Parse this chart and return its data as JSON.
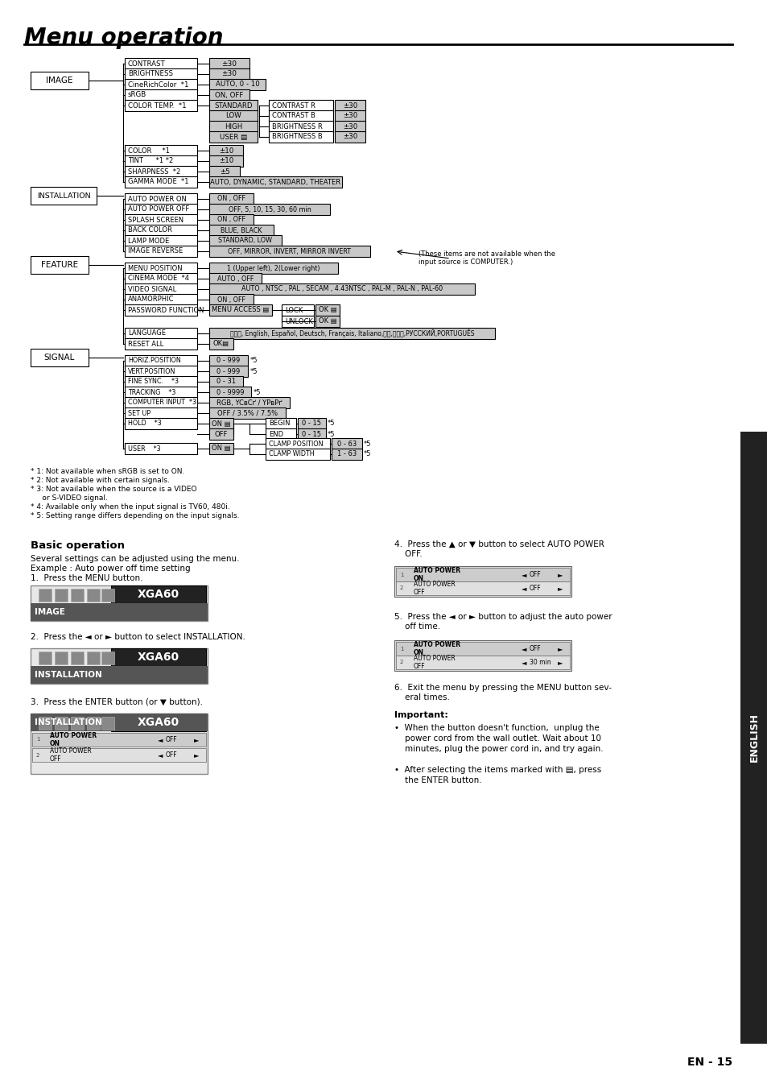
{
  "title": "Menu operation",
  "page_num": "EN - 15",
  "sidebar_text": "ENGLISH",
  "bg_color": "#ffffff",
  "box_light_gray": "#d0d0d0",
  "box_dark": "#404040",
  "footnotes": [
    "* 1: Not available when sRGB is set to ON.",
    "* 2: Not available with certain signals.",
    "* 3: Not available when the source is a VIDEO",
    "     or S-VIDEO signal.",
    "* 4: Available only when the input signal is TV60, 480i.",
    "* 5: Setting range differs depending on the input signals."
  ],
  "basic_op_title": "Basic operation",
  "basic_op_lines": [
    "Several settings can be adjusted using the menu.",
    "Example : Auto power off time setting",
    "1.  Press the MENU button."
  ],
  "step2": "2.  Press the ◄ or ► button to select INSTALLATION.",
  "step3": "3.  Press the ENTER button (or ▼ button).",
  "step4": "4.  Press the ▲ or ▼ button to select AUTO POWER\n    OFF.",
  "step5": "5.  Press the ◄ or ► button to adjust the auto power\n    off time.",
  "step6": "6.  Exit the menu by pressing the MENU button sev-\n    eral times.",
  "important_title": "Important:",
  "important_bullets": [
    "When the button doesn't function,  unplug the power cord from the wall outlet. Wait about 10 minutes, plug the power cord in, and try again.",
    "After selecting the items marked with ▤, press the ENTER button."
  ],
  "note_computer": "(These items are not available when the\ninput source is COMPUTER.)"
}
